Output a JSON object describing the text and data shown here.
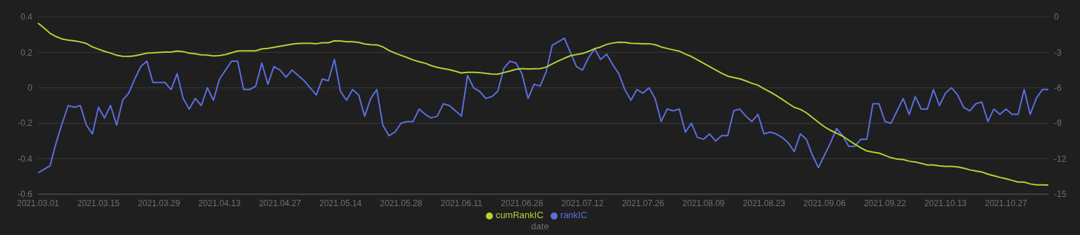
{
  "chart_data": {
    "type": "line",
    "xlabel": "date",
    "categories": [
      "2021.03.01",
      null,
      null,
      null,
      null,
      null,
      null,
      null,
      null,
      null,
      "2021.03.15",
      null,
      null,
      null,
      null,
      null,
      null,
      null,
      null,
      null,
      "2021.03.29",
      null,
      null,
      null,
      null,
      null,
      null,
      null,
      null,
      null,
      "2021.04.13",
      null,
      null,
      null,
      null,
      null,
      null,
      null,
      null,
      null,
      "2021.04.27",
      null,
      null,
      null,
      null,
      null,
      null,
      null,
      null,
      null,
      "2021.05.14",
      null,
      null,
      null,
      null,
      null,
      null,
      null,
      null,
      null,
      "2021.05.28",
      null,
      null,
      null,
      null,
      null,
      null,
      null,
      null,
      null,
      "2021.06.11",
      null,
      null,
      null,
      null,
      null,
      null,
      null,
      null,
      null,
      "2021.06.28",
      null,
      null,
      null,
      null,
      null,
      null,
      null,
      null,
      null,
      "2021.07.12",
      null,
      null,
      null,
      null,
      null,
      null,
      null,
      null,
      null,
      "2021.07.26",
      null,
      null,
      null,
      null,
      null,
      null,
      null,
      null,
      null,
      "2021.08.09",
      null,
      null,
      null,
      null,
      null,
      null,
      null,
      null,
      null,
      "2021.08.23",
      null,
      null,
      null,
      null,
      null,
      null,
      null,
      null,
      null,
      "2021.09.06",
      null,
      null,
      null,
      null,
      null,
      null,
      null,
      null,
      null,
      "2021.09.22",
      null,
      null,
      null,
      null,
      null,
      null,
      null,
      null,
      null,
      "2021.10.13",
      null,
      null,
      null,
      null,
      null,
      null,
      null,
      null,
      null,
      "2021.10.27",
      null,
      null,
      null,
      null,
      null,
      null,
      null
    ],
    "series": [
      {
        "name": "rankIC",
        "color": "#5b6fe0",
        "values": [
          -0.48,
          -0.46,
          -0.44,
          -0.31,
          -0.2,
          -0.1,
          -0.11,
          -0.1,
          -0.21,
          -0.26,
          -0.11,
          -0.17,
          -0.1,
          -0.21,
          -0.07,
          -0.03,
          0.05,
          0.12,
          0.15,
          0.03,
          0.03,
          0.03,
          -0.01,
          0.08,
          -0.06,
          -0.12,
          -0.06,
          -0.1,
          0,
          -0.07,
          0.05,
          0.1,
          0.15,
          0.15,
          -0.01,
          -0.01,
          0.01,
          0.14,
          0.02,
          0.12,
          0.1,
          0.06,
          0.1,
          0.07,
          0.04,
          0,
          -0.04,
          0.05,
          0.04,
          0.16,
          -0.02,
          -0.07,
          -0.01,
          -0.04,
          -0.16,
          -0.06,
          -0.01,
          -0.21,
          -0.27,
          -0.25,
          -0.2,
          -0.19,
          -0.19,
          -0.12,
          -0.15,
          -0.17,
          -0.16,
          -0.09,
          -0.1,
          -0.13,
          -0.16,
          0.07,
          0,
          -0.02,
          -0.06,
          -0.05,
          -0.02,
          0.11,
          0.15,
          0.14,
          0.08,
          -0.06,
          0.02,
          0.01,
          0.09,
          0.24,
          0.26,
          0.28,
          0.2,
          0.12,
          0.1,
          0.17,
          0.22,
          0.16,
          0.19,
          0.13,
          0.08,
          -0.01,
          -0.07,
          -0.01,
          -0.03,
          0,
          -0.06,
          -0.19,
          -0.12,
          -0.13,
          -0.12,
          -0.25,
          -0.2,
          -0.28,
          -0.29,
          -0.26,
          -0.3,
          -0.27,
          -0.27,
          -0.13,
          -0.12,
          -0.16,
          -0.19,
          -0.15,
          -0.26,
          -0.25,
          -0.26,
          -0.28,
          -0.31,
          -0.36,
          -0.26,
          -0.29,
          -0.38,
          -0.45,
          -0.38,
          -0.31,
          -0.23,
          -0.27,
          -0.33,
          -0.33,
          -0.29,
          -0.29,
          -0.09,
          -0.09,
          -0.19,
          -0.2,
          -0.13,
          -0.06,
          -0.15,
          -0.05,
          -0.12,
          -0.12,
          -0.01,
          -0.1,
          -0.03,
          0,
          -0.04,
          -0.11,
          -0.13,
          -0.09,
          -0.08,
          -0.19,
          -0.12,
          -0.15,
          -0.12,
          -0.15,
          -0.15,
          -0.01,
          -0.15,
          -0.06,
          -0.01,
          -0.01
        ]
      },
      {
        "name": "cumRankIC",
        "color": "#b6d334",
        "axis": "y2",
        "values": [
          -0.52,
          -0.94,
          -1.39,
          -1.67,
          -1.87,
          -1.96,
          -2.02,
          -2.12,
          -2.25,
          -2.54,
          -2.73,
          -2.92,
          -3.06,
          -3.25,
          -3.33,
          -3.35,
          -3.29,
          -3.18,
          -3.06,
          -3.04,
          -3.0,
          -2.98,
          -2.98,
          -2.89,
          -2.94,
          -3.06,
          -3.12,
          -3.21,
          -3.23,
          -3.31,
          -3.27,
          -3.18,
          -3.04,
          -2.89,
          -2.87,
          -2.87,
          -2.87,
          -2.71,
          -2.67,
          -2.58,
          -2.48,
          -2.4,
          -2.31,
          -2.25,
          -2.23,
          -2.23,
          -2.27,
          -2.19,
          -2.19,
          -2.02,
          -2.04,
          -2.1,
          -2.1,
          -2.16,
          -2.29,
          -2.35,
          -2.37,
          -2.54,
          -2.83,
          -3.06,
          -3.25,
          -3.44,
          -3.64,
          -3.79,
          -3.92,
          -4.12,
          -4.27,
          -4.37,
          -4.46,
          -4.6,
          -4.75,
          -4.69,
          -4.69,
          -4.71,
          -4.77,
          -4.83,
          -4.85,
          -4.71,
          -4.58,
          -4.43,
          -4.37,
          -4.41,
          -4.39,
          -4.37,
          -4.25,
          -3.98,
          -3.73,
          -3.5,
          -3.29,
          -3.18,
          -3.1,
          -2.92,
          -2.69,
          -2.54,
          -2.33,
          -2.21,
          -2.14,
          -2.16,
          -2.23,
          -2.25,
          -2.27,
          -2.27,
          -2.35,
          -2.54,
          -2.67,
          -2.79,
          -2.9,
          -3.15,
          -3.35,
          -3.64,
          -3.92,
          -4.2,
          -4.49,
          -4.77,
          -5.01,
          -5.13,
          -5.24,
          -5.42,
          -5.62,
          -5.78,
          -6.08,
          -6.35,
          -6.65,
          -6.97,
          -7.32,
          -7.65,
          -7.82,
          -8.11,
          -8.51,
          -8.91,
          -9.3,
          -9.6,
          -9.84,
          -10.09,
          -10.43,
          -10.77,
          -11.08,
          -11.34,
          -11.44,
          -11.52,
          -11.72,
          -11.91,
          -12.03,
          -12.07,
          -12.21,
          -12.27,
          -12.39,
          -12.53,
          -12.53,
          -12.61,
          -12.65,
          -12.65,
          -12.69,
          -12.8,
          -12.94,
          -13.04,
          -13.12,
          -13.3,
          -13.44,
          -13.58,
          -13.69,
          -13.83,
          -13.97,
          -13.97,
          -14.13,
          -14.21,
          -14.21,
          -14.23
        ]
      }
    ],
    "ylim": [
      -0.6,
      0.4
    ],
    "yticks": [
      -0.6,
      -0.4,
      -0.2,
      0,
      0.2,
      0.4
    ],
    "y2lim": [
      -15,
      0
    ],
    "y2ticks": [
      -15,
      -12,
      -9,
      -6,
      -3,
      0
    ],
    "grid": "y",
    "legend": "bottom",
    "marker": "none",
    "line_style": "solid"
  }
}
